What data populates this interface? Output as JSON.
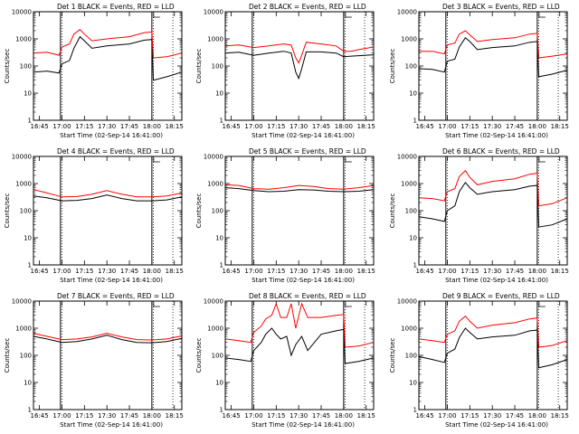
{
  "figure": {
    "ylabel": "Counts/sec",
    "xlabel": "Start Time (02-Sep-14 16:41:00)",
    "time_start": "16:41",
    "x_ticks": [
      "16:45",
      "17:00",
      "17:15",
      "17:30",
      "17:45",
      "18:00",
      "18:15"
    ],
    "y_ticks": [
      "1",
      "10",
      "100",
      "1000",
      "10000"
    ],
    "ylim": [
      1,
      10000
    ],
    "y_scale": "log",
    "xlim": [
      "16:41",
      "18:20"
    ],
    "colors": {
      "events": "#000000",
      "lld": "#ff0000"
    },
    "solid_vertical_markers": [
      "16:59",
      "18:00"
    ],
    "dotted_vertical_markers": [
      "17:00",
      "18:01",
      "18:14"
    ]
  },
  "chart_data": [
    {
      "type": "line",
      "title": "Det 1  BLACK = Events, RED = LLD",
      "y_scale": "log",
      "ylim": [
        1,
        10000
      ],
      "x": [
        "16:41",
        "16:50",
        "16:58",
        "17:00",
        "17:05",
        "17:08",
        "17:12",
        "17:15",
        "17:20",
        "17:30",
        "17:45",
        "17:55",
        "18:00",
        "18:01",
        "18:10",
        "18:20"
      ],
      "series": [
        {
          "name": "BLACK = Events",
          "color": "#000000",
          "values": [
            60,
            65,
            55,
            120,
            160,
            450,
            1200,
            850,
            450,
            550,
            650,
            900,
            950,
            30,
            40,
            60
          ]
        },
        {
          "name": "RED = LLD",
          "color": "#ff0000",
          "values": [
            300,
            320,
            250,
            500,
            650,
            1500,
            2200,
            1500,
            850,
            1000,
            1200,
            1700,
            1800,
            200,
            220,
            300
          ]
        }
      ]
    },
    {
      "type": "line",
      "title": "Det 2  BLACK = Events, RED = LLD",
      "y_scale": "log",
      "ylim": [
        1,
        10000
      ],
      "x": [
        "16:41",
        "16:50",
        "17:00",
        "17:10",
        "17:20",
        "17:25",
        "17:28",
        "17:30",
        "17:32",
        "17:35",
        "17:45",
        "17:55",
        "18:00",
        "18:05",
        "18:10",
        "18:20"
      ],
      "series": [
        {
          "name": "BLACK = Events",
          "color": "#000000",
          "values": [
            300,
            320,
            250,
            300,
            350,
            300,
            60,
            35,
            80,
            330,
            330,
            300,
            220,
            230,
            240,
            260
          ]
        },
        {
          "name": "RED = LLD",
          "color": "#ff0000",
          "values": [
            550,
            600,
            480,
            550,
            650,
            600,
            200,
            130,
            250,
            750,
            650,
            550,
            350,
            350,
            400,
            500
          ]
        }
      ]
    },
    {
      "type": "line",
      "title": "Det 3  BLACK = Events, RED = LLD",
      "y_scale": "log",
      "ylim": [
        1,
        10000
      ],
      "x": [
        "16:41",
        "16:50",
        "16:58",
        "17:00",
        "17:05",
        "17:08",
        "17:12",
        "17:15",
        "17:20",
        "17:30",
        "17:45",
        "17:55",
        "18:00",
        "18:01",
        "18:10",
        "18:20"
      ],
      "series": [
        {
          "name": "BLACK = Events",
          "color": "#000000",
          "values": [
            80,
            75,
            60,
            150,
            180,
            500,
            1100,
            800,
            400,
            480,
            550,
            750,
            800,
            40,
            50,
            70
          ]
        },
        {
          "name": "RED = LLD",
          "color": "#ff0000",
          "values": [
            350,
            350,
            280,
            600,
            700,
            1500,
            2000,
            1400,
            800,
            950,
            1100,
            1500,
            1600,
            200,
            230,
            280
          ]
        }
      ]
    },
    {
      "type": "line",
      "title": "Det 4  BLACK = Events, RED = LLD",
      "y_scale": "log",
      "ylim": [
        1,
        10000
      ],
      "x": [
        "16:41",
        "16:50",
        "17:00",
        "17:10",
        "17:20",
        "17:30",
        "17:40",
        "17:50",
        "18:00",
        "18:10",
        "18:20"
      ],
      "series": [
        {
          "name": "BLACK = Events",
          "color": "#000000",
          "values": [
            350,
            300,
            230,
            240,
            280,
            380,
            280,
            230,
            230,
            250,
            320
          ]
        },
        {
          "name": "RED = LLD",
          "color": "#ff0000",
          "values": [
            600,
            450,
            320,
            330,
            400,
            550,
            400,
            320,
            320,
            350,
            450
          ]
        }
      ]
    },
    {
      "type": "line",
      "title": "Det 5  BLACK = Events, RED = LLD",
      "y_scale": "log",
      "ylim": [
        1,
        10000
      ],
      "x": [
        "16:41",
        "16:50",
        "17:00",
        "17:10",
        "17:20",
        "17:30",
        "17:40",
        "17:50",
        "18:00",
        "18:10",
        "18:20"
      ],
      "series": [
        {
          "name": "BLACK = Events",
          "color": "#000000",
          "values": [
            700,
            650,
            550,
            500,
            520,
            600,
            580,
            520,
            500,
            520,
            600
          ]
        },
        {
          "name": "RED = LLD",
          "color": "#ff0000",
          "values": [
            900,
            850,
            650,
            620,
            700,
            850,
            780,
            650,
            620,
            700,
            850
          ]
        }
      ]
    },
    {
      "type": "line",
      "title": "Det 6  BLACK = Events, RED = LLD",
      "y_scale": "log",
      "ylim": [
        1,
        10000
      ],
      "x": [
        "16:41",
        "16:50",
        "16:58",
        "17:00",
        "17:05",
        "17:08",
        "17:12",
        "17:15",
        "17:20",
        "17:30",
        "17:45",
        "17:55",
        "18:00",
        "18:01",
        "18:10",
        "18:20"
      ],
      "series": [
        {
          "name": "BLACK = Events",
          "color": "#000000",
          "values": [
            60,
            50,
            40,
            100,
            150,
            500,
            1100,
            700,
            400,
            500,
            600,
            800,
            850,
            25,
            30,
            50
          ]
        },
        {
          "name": "RED = LLD",
          "color": "#ff0000",
          "values": [
            300,
            280,
            230,
            500,
            650,
            1800,
            3000,
            1700,
            900,
            1200,
            1500,
            2200,
            2400,
            150,
            180,
            300
          ]
        }
      ]
    },
    {
      "type": "line",
      "title": "Det 7  BLACK = Events, RED = LLD",
      "y_scale": "log",
      "ylim": [
        1,
        10000
      ],
      "x": [
        "16:41",
        "16:50",
        "17:00",
        "17:10",
        "17:20",
        "17:30",
        "17:40",
        "17:50",
        "18:00",
        "18:10",
        "18:20"
      ],
      "series": [
        {
          "name": "BLACK = Events",
          "color": "#000000",
          "values": [
            500,
            400,
            300,
            320,
            400,
            550,
            380,
            300,
            290,
            320,
            420
          ]
        },
        {
          "name": "RED = LLD",
          "color": "#ff0000",
          "values": [
            650,
            500,
            380,
            400,
            480,
            650,
            480,
            380,
            370,
            400,
            520
          ]
        }
      ]
    },
    {
      "type": "line",
      "title": "Det 8  BLACK = Events, RED = LLD",
      "y_scale": "log",
      "ylim": [
        1,
        10000
      ],
      "x": [
        "16:41",
        "16:50",
        "16:58",
        "17:00",
        "17:05",
        "17:08",
        "17:12",
        "17:15",
        "17:18",
        "17:22",
        "17:25",
        "17:28",
        "17:32",
        "17:36",
        "17:45",
        "17:55",
        "18:00",
        "18:01",
        "18:10",
        "18:20"
      ],
      "series": [
        {
          "name": "BLACK = Events",
          "color": "#000000",
          "values": [
            80,
            70,
            60,
            150,
            300,
            600,
            1000,
            600,
            400,
            500,
            100,
            250,
            500,
            150,
            600,
            800,
            900,
            50,
            60,
            80
          ]
        },
        {
          "name": "RED = LLD",
          "color": "#ff0000",
          "values": [
            400,
            350,
            300,
            700,
            1200,
            2200,
            3000,
            8000,
            2500,
            2500,
            8000,
            1000,
            8000,
            2500,
            2500,
            3000,
            3200,
            200,
            220,
            300
          ]
        }
      ]
    },
    {
      "type": "line",
      "title": "Det 9  BLACK = Events, RED = LLD",
      "y_scale": "log",
      "ylim": [
        1,
        10000
      ],
      "x": [
        "16:41",
        "16:50",
        "16:58",
        "17:00",
        "17:05",
        "17:08",
        "17:12",
        "17:15",
        "17:20",
        "17:30",
        "17:45",
        "17:55",
        "18:00",
        "18:01",
        "18:10",
        "18:20"
      ],
      "series": [
        {
          "name": "BLACK = Events",
          "color": "#000000",
          "values": [
            90,
            70,
            55,
            120,
            170,
            450,
            1000,
            700,
            400,
            480,
            550,
            800,
            850,
            35,
            45,
            70
          ]
        },
        {
          "name": "RED = LLD",
          "color": "#ff0000",
          "values": [
            400,
            350,
            300,
            600,
            800,
            1800,
            2800,
            1800,
            1000,
            1300,
            1600,
            2200,
            2400,
            200,
            230,
            350
          ]
        }
      ]
    }
  ]
}
